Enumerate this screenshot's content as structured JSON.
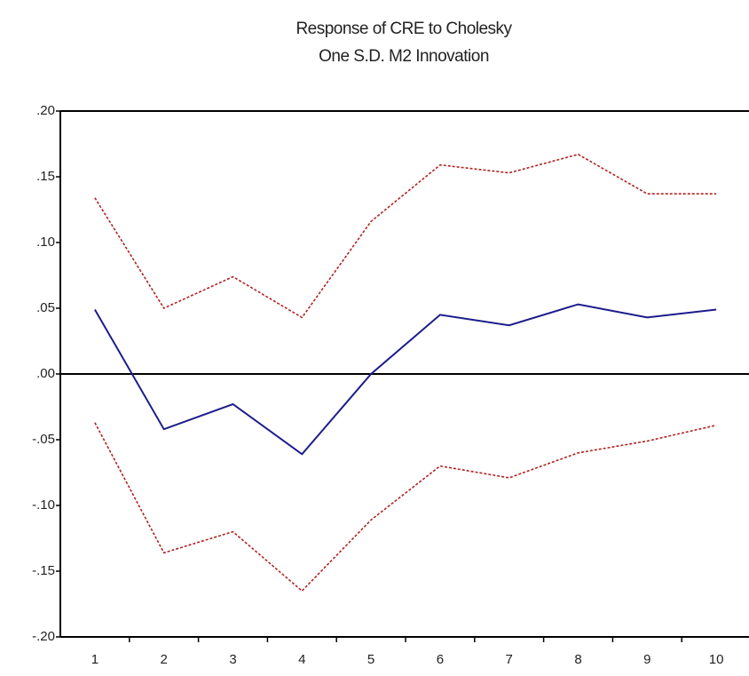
{
  "chart_data": {
    "type": "line",
    "title": [
      "Response of CRE to Cholesky",
      "One S.D. M2 Innovation"
    ],
    "categories": [
      "1",
      "2",
      "3",
      "4",
      "5",
      "6",
      "7",
      "8",
      "9",
      "10"
    ],
    "series": [
      {
        "color": "#1c1c8c",
        "values": [
          0.049,
          -0.042,
          -0.023,
          -0.061,
          0.0,
          0.045,
          0.037,
          0.053,
          0.043,
          0.049
        ]
      },
      {
        "color": "#b22222",
        "dashed": true,
        "values": [
          0.134,
          0.05,
          0.074,
          0.043,
          0.116,
          0.159,
          0.153,
          0.167,
          0.137,
          0.137
        ]
      },
      {
        "color": "#b22222",
        "dashed": true,
        "values": [
          -0.037,
          -0.136,
          -0.12,
          -0.165,
          -0.111,
          -0.07,
          -0.079,
          -0.06,
          -0.051,
          -0.039
        ]
      }
    ],
    "ylim": [
      -0.2,
      0.2
    ],
    "yticks": [
      {
        "value": 0.2,
        "label": ".20"
      },
      {
        "value": 0.15,
        "label": ".15"
      },
      {
        "value": 0.1,
        "label": ".10"
      },
      {
        "value": 0.05,
        "label": ".05"
      },
      {
        "value": 0,
        "label": ".00"
      },
      {
        "value": -0.05,
        "label": "-.05"
      },
      {
        "value": -0.1,
        "label": "-.10"
      },
      {
        "value": -0.15,
        "label": "-.15"
      },
      {
        "value": -0.2,
        "label": "-.20"
      }
    ],
    "zero_line": true
  }
}
